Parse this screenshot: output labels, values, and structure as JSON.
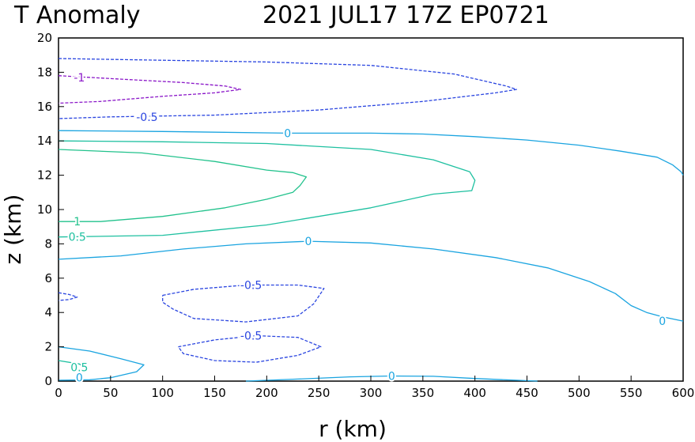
{
  "chart_data": {
    "type": "contour",
    "title_left": "T Anomaly",
    "title_right": "2021 JUL17 17Z   EP0721",
    "xlabel": "r (km)",
    "ylabel": "z (km)",
    "xlim": [
      0,
      600
    ],
    "ylim": [
      0,
      20
    ],
    "xticks": [
      "0",
      "50",
      "100",
      "150",
      "200",
      "250",
      "300",
      "350",
      "400",
      "450",
      "500",
      "550",
      "600"
    ],
    "yticks": [
      "0",
      "2",
      "4",
      "6",
      "8",
      "10",
      "12",
      "14",
      "16",
      "18",
      "20"
    ],
    "grid": false,
    "colors": {
      "level_neg1": "#8a16c8",
      "level_neg05": "#2a45e0",
      "level_0": "#1aa4e0",
      "level_05": "#1ec0a0",
      "level_1": "#22c28c"
    },
    "contours": [
      {
        "level": "-1",
        "color": "level_neg1",
        "dashed": true,
        "points": [
          [
            0,
            17.8
          ],
          [
            60,
            17.6
          ],
          [
            120,
            17.4
          ],
          [
            160,
            17.2
          ],
          [
            175,
            17.0
          ],
          [
            150,
            16.8
          ],
          [
            100,
            16.6
          ],
          [
            40,
            16.3
          ],
          [
            0,
            16.2
          ]
        ]
      },
      {
        "level": "-0.5",
        "color": "level_neg05",
        "dashed": true,
        "points": [
          [
            0,
            18.8
          ],
          [
            100,
            18.7
          ],
          [
            200,
            18.6
          ],
          [
            300,
            18.4
          ],
          [
            380,
            17.9
          ],
          [
            430,
            17.2
          ],
          [
            440,
            17.0
          ],
          [
            420,
            16.8
          ],
          [
            350,
            16.3
          ],
          [
            250,
            15.8
          ],
          [
            150,
            15.5
          ],
          [
            50,
            15.4
          ],
          [
            0,
            15.3
          ]
        ]
      },
      {
        "level": "0",
        "color": "level_0",
        "dashed": false,
        "points": [
          [
            0,
            14.6
          ],
          [
            100,
            14.55
          ],
          [
            220,
            14.45
          ],
          [
            300,
            14.45
          ],
          [
            350,
            14.4
          ],
          [
            400,
            14.25
          ],
          [
            450,
            14.05
          ],
          [
            500,
            13.75
          ],
          [
            540,
            13.4
          ],
          [
            575,
            13.05
          ],
          [
            590,
            12.6
          ],
          [
            598,
            12.2
          ],
          [
            600,
            12.0
          ]
        ]
      },
      {
        "level": "0.5",
        "color": "level_05",
        "dashed": false,
        "points": [
          [
            0,
            14.0
          ],
          [
            100,
            13.95
          ],
          [
            200,
            13.85
          ],
          [
            300,
            13.5
          ],
          [
            360,
            12.9
          ],
          [
            395,
            12.2
          ],
          [
            400,
            11.7
          ],
          [
            397,
            11.1
          ],
          [
            360,
            10.9
          ],
          [
            300,
            10.1
          ],
          [
            200,
            9.1
          ],
          [
            100,
            8.5
          ],
          [
            0,
            8.4
          ]
        ]
      },
      {
        "level": "1",
        "color": "level_1",
        "dashed": false,
        "points": [
          [
            0,
            13.5
          ],
          [
            80,
            13.3
          ],
          [
            150,
            12.8
          ],
          [
            200,
            12.3
          ],
          [
            225,
            12.15
          ],
          [
            238,
            11.9
          ],
          [
            232,
            11.4
          ],
          [
            225,
            11.0
          ],
          [
            200,
            10.6
          ],
          [
            160,
            10.1
          ],
          [
            100,
            9.6
          ],
          [
            40,
            9.3
          ],
          [
            0,
            9.3
          ]
        ]
      },
      {
        "level": "0",
        "color": "level_0",
        "dashed": false,
        "points": [
          [
            0,
            7.1
          ],
          [
            60,
            7.3
          ],
          [
            120,
            7.7
          ],
          [
            180,
            8.0
          ],
          [
            240,
            8.15
          ],
          [
            300,
            8.05
          ],
          [
            360,
            7.7
          ],
          [
            420,
            7.2
          ],
          [
            470,
            6.6
          ],
          [
            510,
            5.8
          ],
          [
            535,
            5.1
          ],
          [
            550,
            4.4
          ],
          [
            565,
            4.0
          ],
          [
            580,
            3.75
          ],
          [
            600,
            3.5
          ]
        ]
      },
      {
        "level": "-0.5",
        "color": "level_neg05",
        "dashed": true,
        "points": [
          [
            100,
            5.0
          ],
          [
            130,
            5.35
          ],
          [
            180,
            5.6
          ],
          [
            230,
            5.6
          ],
          [
            255,
            5.4
          ],
          [
            245,
            4.5
          ],
          [
            230,
            3.8
          ],
          [
            180,
            3.45
          ],
          [
            130,
            3.65
          ],
          [
            110,
            4.2
          ],
          [
            100,
            4.6
          ],
          [
            100,
            5.0
          ]
        ]
      },
      {
        "level": "-0.5",
        "color": "level_neg05",
        "dashed": true,
        "points": [
          [
            115,
            2.0
          ],
          [
            150,
            2.4
          ],
          [
            190,
            2.65
          ],
          [
            230,
            2.55
          ],
          [
            252,
            2.0
          ],
          [
            230,
            1.5
          ],
          [
            190,
            1.1
          ],
          [
            150,
            1.2
          ],
          [
            120,
            1.6
          ],
          [
            115,
            2.0
          ]
        ]
      },
      {
        "level": "-0.5",
        "color": "level_neg05",
        "dashed": true,
        "points": [
          [
            0,
            5.15
          ],
          [
            10,
            5.05
          ],
          [
            18,
            4.9
          ],
          [
            10,
            4.75
          ],
          [
            0,
            4.7
          ]
        ]
      },
      {
        "level": "0",
        "color": "level_0",
        "dashed": false,
        "points": [
          [
            0,
            2.0
          ],
          [
            30,
            1.75
          ],
          [
            60,
            1.3
          ],
          [
            82,
            0.95
          ],
          [
            75,
            0.55
          ],
          [
            50,
            0.2
          ],
          [
            30,
            0.08
          ],
          [
            0,
            0.05
          ]
        ]
      },
      {
        "level": "0.5",
        "color": "level_05",
        "dashed": false,
        "points": [
          [
            0,
            1.2
          ],
          [
            20,
            1.0
          ],
          [
            25,
            0.8
          ]
        ]
      },
      {
        "level": "0",
        "color": "level_0",
        "dashed": false,
        "points": [
          [
            180,
            0.0
          ],
          [
            230,
            0.12
          ],
          [
            280,
            0.25
          ],
          [
            320,
            0.3
          ],
          [
            360,
            0.28
          ],
          [
            400,
            0.15
          ],
          [
            440,
            0.05
          ],
          [
            460,
            0.0
          ]
        ]
      }
    ],
    "contour_labels": [
      {
        "text": "-1",
        "x": 20,
        "y": 17.7,
        "color": "level_neg1"
      },
      {
        "text": "-0.5",
        "x": 85,
        "y": 15.4,
        "color": "level_neg05"
      },
      {
        "text": "0",
        "x": 220,
        "y": 14.45,
        "color": "level_0"
      },
      {
        "text": "1",
        "x": 18,
        "y": 9.3,
        "color": "level_1"
      },
      {
        "text": "0.5",
        "x": 18,
        "y": 8.4,
        "color": "level_05"
      },
      {
        "text": "0",
        "x": 240,
        "y": 8.15,
        "color": "level_0"
      },
      {
        "text": "-0.5",
        "x": 185,
        "y": 5.6,
        "color": "level_neg05"
      },
      {
        "text": "0",
        "x": 580,
        "y": 3.5,
        "color": "level_0"
      },
      {
        "text": "-0.5",
        "x": 185,
        "y": 2.65,
        "color": "level_neg05"
      },
      {
        "text": "0.5",
        "x": 20,
        "y": 0.8,
        "color": "level_05"
      },
      {
        "text": "0",
        "x": 20,
        "y": 0.2,
        "color": "level_0"
      },
      {
        "text": "0",
        "x": 320,
        "y": 0.3,
        "color": "level_0"
      }
    ]
  }
}
